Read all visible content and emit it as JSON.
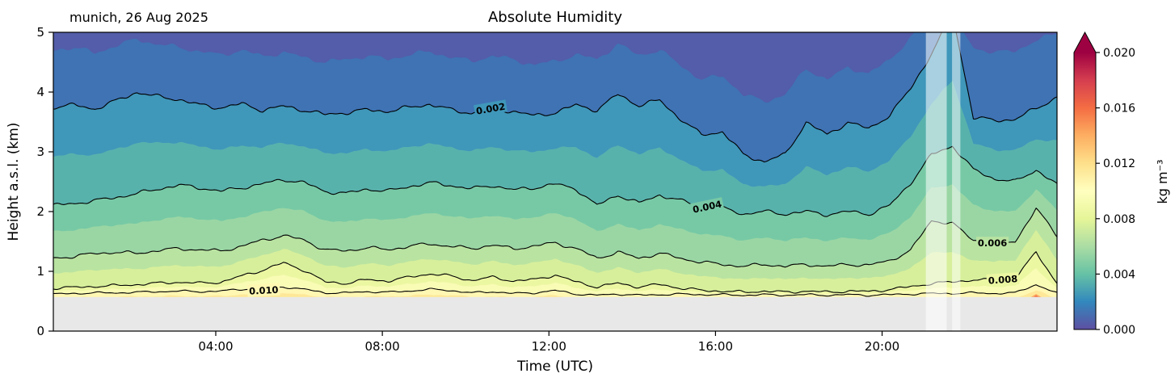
{
  "chart_data": {
    "type": "filled_contour",
    "title": "Absolute Humidity",
    "annotation": "munich, 26 Aug 2025",
    "xlabel": "Time (UTC)",
    "ylabel": "Height a.s.l. (km)",
    "x_range": [
      0.1,
      24.2
    ],
    "y_range": [
      0,
      5
    ],
    "x_ticks": [
      {
        "value": 4,
        "label": "04:00"
      },
      {
        "value": 8,
        "label": "08:00"
      },
      {
        "value": 12,
        "label": "12:00"
      },
      {
        "value": 16,
        "label": "16:00"
      },
      {
        "value": 20,
        "label": "20:00"
      }
    ],
    "y_ticks": [
      {
        "value": 0,
        "label": "0"
      },
      {
        "value": 1,
        "label": "1"
      },
      {
        "value": 2,
        "label": "2"
      },
      {
        "value": 3,
        "label": "3"
      },
      {
        "value": 4,
        "label": "4"
      },
      {
        "value": 5,
        "label": "5"
      }
    ],
    "colorbar": {
      "label": "kg m⁻³",
      "vmin": 0,
      "vmax": 0.02,
      "extend": "max",
      "over_color": "#9e0142",
      "colormap": [
        "#5e4fa2",
        "#3288bd",
        "#66c2a5",
        "#abdda4",
        "#e6f598",
        "#ffffbf",
        "#fee08b",
        "#fdae61",
        "#f46d43",
        "#d53e4f",
        "#9e0142"
      ],
      "ticks": [
        {
          "value": 0.0,
          "label": "0.000"
        },
        {
          "value": 0.004,
          "label": "0.004"
        },
        {
          "value": 0.008,
          "label": "0.008"
        },
        {
          "value": 0.012,
          "label": "0.012"
        },
        {
          "value": 0.016,
          "label": "0.016"
        },
        {
          "value": 0.02,
          "label": "0.020"
        }
      ]
    },
    "ground": {
      "top_km": 0.57,
      "color": "#e8e8e8"
    },
    "gaps": [
      {
        "t0": 21.05,
        "t1": 21.55,
        "opacity": 0.55
      },
      {
        "t0": 21.68,
        "t1": 21.88,
        "opacity": 0.5
      }
    ],
    "band_colors": {
      "0": "#535da9",
      "0.001": "#3f73b4",
      "0.002": "#3f97ba",
      "0.003": "#58b2ac",
      "0.004": "#77c9a5",
      "0.005": "#9ad6a4",
      "0.006": "#b9e3a1",
      "0.007": "#d7ef9b",
      "0.008": "#ecf7a2",
      "0.009": "#f9fcb5",
      "0.01": "#fff7b2",
      "0.011": "#fee898",
      "0.012": "#fca65e",
      "0.013": "#f4744e"
    },
    "derived_mids": [
      {
        "level": 0.003,
        "between": [
          0.002,
          0.004
        ]
      },
      {
        "level": 0.005,
        "between": [
          0.004,
          0.006
        ]
      },
      {
        "level": 0.007,
        "between": [
          0.006,
          0.008
        ]
      },
      {
        "level": 0.009,
        "between": [
          0.008,
          0.01
        ]
      }
    ],
    "boundaries": [
      {
        "level": 0.001,
        "amp": 0.05,
        "heights": [
          4.7,
          4.75,
          4.65,
          4.78,
          4.88,
          4.8,
          4.75,
          4.68,
          4.62,
          4.7,
          4.6,
          4.66,
          4.58,
          4.5,
          4.55,
          4.6,
          4.55,
          4.62,
          4.68,
          4.58,
          4.52,
          4.6,
          4.55,
          4.45,
          4.52,
          4.62,
          4.55,
          4.8,
          4.62,
          4.7,
          4.45,
          4.2,
          4.28,
          3.95,
          3.85,
          3.95,
          4.4,
          4.2,
          4.42,
          4.3,
          4.55,
          4.9,
          5.3,
          5.3,
          4.75,
          4.65,
          4.7,
          4.85,
          5.0
        ]
      },
      {
        "level": 0.002,
        "amp": 0.045,
        "line": true,
        "label": {
          "text": "0.002",
          "t": 10.6,
          "h": 3.72,
          "rot": -10
        },
        "heights": [
          3.75,
          3.78,
          3.72,
          3.85,
          4.0,
          3.92,
          3.88,
          3.78,
          3.74,
          3.8,
          3.7,
          3.76,
          3.7,
          3.62,
          3.66,
          3.7,
          3.68,
          3.74,
          3.8,
          3.7,
          3.65,
          3.72,
          3.68,
          3.6,
          3.66,
          3.78,
          3.7,
          3.96,
          3.78,
          3.86,
          3.55,
          3.28,
          3.34,
          2.95,
          2.84,
          2.95,
          3.5,
          3.28,
          3.5,
          3.38,
          3.62,
          4.05,
          4.65,
          5.3,
          3.58,
          3.52,
          3.55,
          3.72,
          3.92
        ]
      },
      {
        "level": 0.004,
        "amp": 0.04,
        "line": true,
        "label": {
          "text": "0.004",
          "t": 15.8,
          "h": 2.08,
          "rot": -12
        },
        "heights": [
          2.1,
          2.14,
          2.18,
          2.24,
          2.3,
          2.38,
          2.44,
          2.4,
          2.34,
          2.4,
          2.46,
          2.54,
          2.48,
          2.34,
          2.3,
          2.38,
          2.34,
          2.42,
          2.48,
          2.44,
          2.38,
          2.44,
          2.36,
          2.4,
          2.46,
          2.38,
          2.1,
          2.28,
          2.14,
          2.28,
          2.18,
          2.1,
          2.06,
          1.96,
          2.0,
          1.96,
          2.0,
          1.95,
          2.0,
          1.96,
          2.1,
          2.48,
          2.95,
          3.1,
          2.7,
          2.55,
          2.5,
          2.7,
          2.45
        ]
      },
      {
        "level": 0.006,
        "amp": 0.035,
        "line": true,
        "label": {
          "text": "0.006",
          "t": 22.65,
          "h": 1.47,
          "rot": 0
        },
        "heights": [
          1.22,
          1.25,
          1.3,
          1.32,
          1.3,
          1.35,
          1.38,
          1.36,
          1.34,
          1.42,
          1.52,
          1.6,
          1.52,
          1.36,
          1.34,
          1.4,
          1.36,
          1.42,
          1.46,
          1.42,
          1.38,
          1.44,
          1.38,
          1.42,
          1.48,
          1.38,
          1.22,
          1.32,
          1.22,
          1.3,
          1.22,
          1.15,
          1.12,
          1.08,
          1.12,
          1.08,
          1.12,
          1.08,
          1.12,
          1.1,
          1.18,
          1.35,
          1.85,
          1.8,
          1.52,
          1.47,
          1.5,
          2.05,
          1.6
        ]
      },
      {
        "level": 0.008,
        "amp": 0.03,
        "line": true,
        "label": {
          "text": "0.008",
          "t": 22.9,
          "h": 0.86,
          "rot": -4
        },
        "heights": [
          0.72,
          0.73,
          0.75,
          0.76,
          0.78,
          0.8,
          0.82,
          0.8,
          0.82,
          0.92,
          1.02,
          1.14,
          1.02,
          0.82,
          0.8,
          0.86,
          0.84,
          0.9,
          0.96,
          0.92,
          0.85,
          0.9,
          0.84,
          0.86,
          0.94,
          0.82,
          0.74,
          0.8,
          0.74,
          0.78,
          0.72,
          0.68,
          0.67,
          0.65,
          0.67,
          0.65,
          0.67,
          0.65,
          0.67,
          0.66,
          0.7,
          0.74,
          0.8,
          0.82,
          0.86,
          0.85,
          0.88,
          1.32,
          0.8
        ]
      },
      {
        "level": 0.01,
        "amp": 0.02,
        "line": true,
        "label": {
          "text": "0.010",
          "t": 5.15,
          "h": 0.68,
          "rot": -3
        },
        "heights": [
          0.62,
          0.63,
          0.64,
          0.64,
          0.65,
          0.66,
          0.67,
          0.66,
          0.67,
          0.7,
          0.72,
          0.74,
          0.7,
          0.64,
          0.64,
          0.66,
          0.65,
          0.67,
          0.7,
          0.68,
          0.64,
          0.66,
          0.63,
          0.64,
          0.68,
          0.62,
          0.6,
          0.62,
          0.6,
          0.61,
          0.62,
          0.61,
          0.61,
          0.6,
          0.61,
          0.6,
          0.61,
          0.6,
          0.61,
          0.6,
          0.61,
          0.62,
          0.63,
          0.63,
          0.64,
          0.63,
          0.64,
          0.78,
          0.63
        ]
      },
      {
        "level": 0.011,
        "amp": 0.015,
        "heights": [
          0.56,
          0.56,
          0.57,
          0.57,
          0.58,
          0.58,
          0.59,
          0.58,
          0.59,
          0.61,
          0.62,
          0.63,
          0.61,
          0.57,
          0.57,
          0.58,
          0.58,
          0.59,
          0.61,
          0.6,
          0.57,
          0.58,
          0.56,
          0.57,
          0.6,
          0.55,
          0.53,
          0.55,
          0.53,
          0.54,
          0.53,
          0.53,
          0.53,
          0.52,
          0.53,
          0.52,
          0.53,
          0.52,
          0.53,
          0.52,
          0.53,
          0.54,
          0.54,
          0.54,
          0.55,
          0.54,
          0.55,
          0.68,
          0.54
        ]
      },
      {
        "level": 0.012,
        "amp": 0,
        "heights": [
          0.4,
          0.4,
          0.4,
          0.4,
          0.4,
          0.4,
          0.4,
          0.4,
          0.4,
          0.4,
          0.4,
          0.4,
          0.4,
          0.4,
          0.4,
          0.4,
          0.4,
          0.4,
          0.4,
          0.4,
          0.4,
          0.4,
          0.4,
          0.4,
          0.4,
          0.4,
          0.4,
          0.4,
          0.4,
          0.4,
          0.4,
          0.4,
          0.4,
          0.4,
          0.4,
          0.4,
          0.4,
          0.4,
          0.4,
          0.4,
          0.4,
          0.4,
          0.4,
          0.4,
          0.4,
          0.4,
          0.42,
          0.62,
          0.42
        ]
      },
      {
        "level": 0.013,
        "amp": 0,
        "heights": [
          0.3,
          0.3,
          0.3,
          0.3,
          0.3,
          0.3,
          0.3,
          0.3,
          0.3,
          0.3,
          0.3,
          0.3,
          0.3,
          0.3,
          0.3,
          0.3,
          0.3,
          0.3,
          0.3,
          0.3,
          0.3,
          0.3,
          0.3,
          0.3,
          0.3,
          0.3,
          0.3,
          0.3,
          0.3,
          0.3,
          0.3,
          0.3,
          0.3,
          0.3,
          0.3,
          0.3,
          0.3,
          0.3,
          0.3,
          0.3,
          0.3,
          0.3,
          0.3,
          0.3,
          0.3,
          0.3,
          0.32,
          0.6,
          0.32
        ]
      }
    ]
  }
}
